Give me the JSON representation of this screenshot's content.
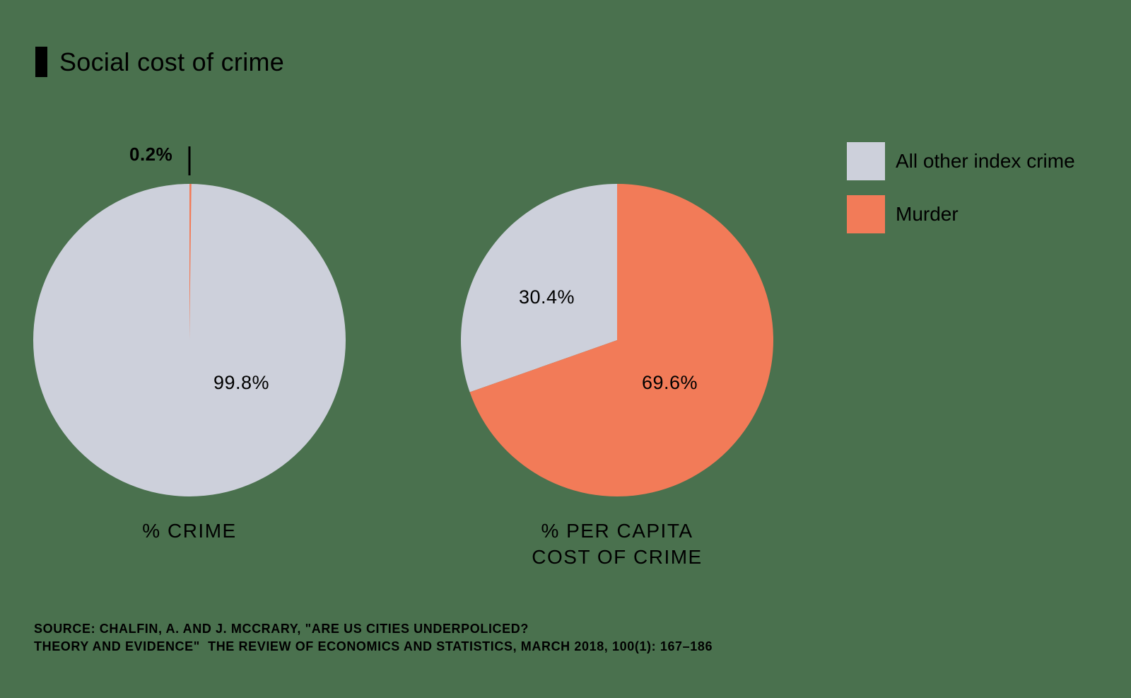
{
  "title": "Social cost of crime",
  "colors": {
    "background": "#4a714e",
    "all_other": "#cdd0db",
    "murder": "#f27b58"
  },
  "legend": [
    {
      "label": "All other index crime",
      "color": "#cdd0db"
    },
    {
      "label": "Murder",
      "color": "#f27b58"
    }
  ],
  "charts": [
    {
      "label": "% CRIME",
      "slices": [
        {
          "name": "Murder",
          "value": 0.2,
          "label": "0.2%"
        },
        {
          "name": "All other index crime",
          "value": 99.8,
          "label": "99.8%"
        }
      ]
    },
    {
      "label_line1": "% PER CAPITA",
      "label_line2": "COST OF CRIME",
      "slices": [
        {
          "name": "Murder",
          "value": 69.6,
          "label": "69.6%"
        },
        {
          "name": "All other index crime",
          "value": 30.4,
          "label": "30.4%"
        }
      ]
    }
  ],
  "source": {
    "line1": "SOURCE: CHALFIN, A. AND J. MCCRARY, \"ARE US CITIES UNDERPOLICED?",
    "line2": "THEORY AND EVIDENCE\"  THE REVIEW OF ECONOMICS AND STATISTICS, MARCH 2018, 100(1): 167–186"
  },
  "chart_data": [
    {
      "type": "pie",
      "title": "% CRIME",
      "categories": [
        "Murder",
        "All other index crime"
      ],
      "values": [
        0.2,
        99.8
      ],
      "colors": [
        "#f27b58",
        "#cdd0db"
      ],
      "legend_position": "right"
    },
    {
      "type": "pie",
      "title": "% PER CAPITA COST OF CRIME",
      "categories": [
        "Murder",
        "All other index crime"
      ],
      "values": [
        69.6,
        30.4
      ],
      "colors": [
        "#f27b58",
        "#cdd0db"
      ],
      "legend_position": "right"
    }
  ]
}
